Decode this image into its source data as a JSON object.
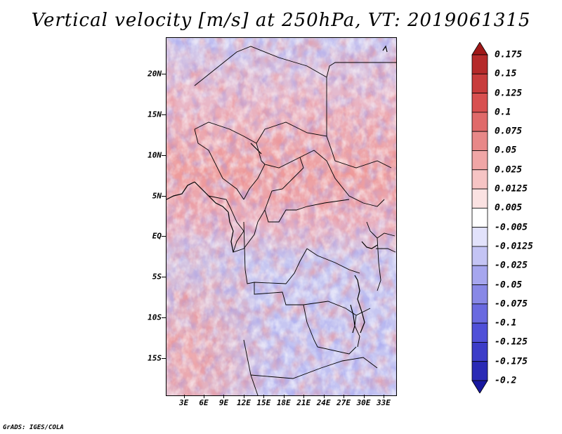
{
  "title": "Vertical velocity [m/s] at 250hPa, VT: 2019061315",
  "credit": "GrADS: IGES/COLA",
  "map": {
    "lat_labels": [
      "20N",
      "15N",
      "10N",
      "5N",
      "EQ",
      "5S",
      "10S",
      "15S"
    ],
    "lat_values": [
      20,
      15,
      10,
      5,
      0,
      -5,
      -10,
      -15
    ],
    "lon_labels": [
      "3E",
      "6E",
      "9E",
      "12E",
      "15E",
      "18E",
      "21E",
      "24E",
      "27E",
      "30E",
      "33E"
    ],
    "lon_values": [
      3,
      6,
      9,
      12,
      15,
      18,
      21,
      24,
      27,
      30,
      33
    ],
    "lat_range": [
      -19.5,
      24.5
    ],
    "lon_range": [
      0.3,
      34.8
    ]
  },
  "colorbar": {
    "labels": [
      "0.175",
      "0.15",
      "0.125",
      "0.1",
      "0.075",
      "0.05",
      "0.025",
      "0.0125",
      "0.005",
      "-0.005",
      "-0.0125",
      "-0.025",
      "-0.05",
      "-0.075",
      "-0.1",
      "-0.125",
      "-0.175",
      "-0.2"
    ],
    "colors": [
      "#a01818",
      "#b52a2a",
      "#c83c3c",
      "#d85050",
      "#e06a6a",
      "#e88888",
      "#f0a6a6",
      "#f6c4c4",
      "#fbe2e2",
      "#ffffff",
      "#e2e2fb",
      "#c4c4f4",
      "#a6a6ee",
      "#8888e6",
      "#6a6ae0",
      "#5050d8",
      "#3c3cc8",
      "#2a2ab5",
      "#1818a0"
    ]
  }
}
